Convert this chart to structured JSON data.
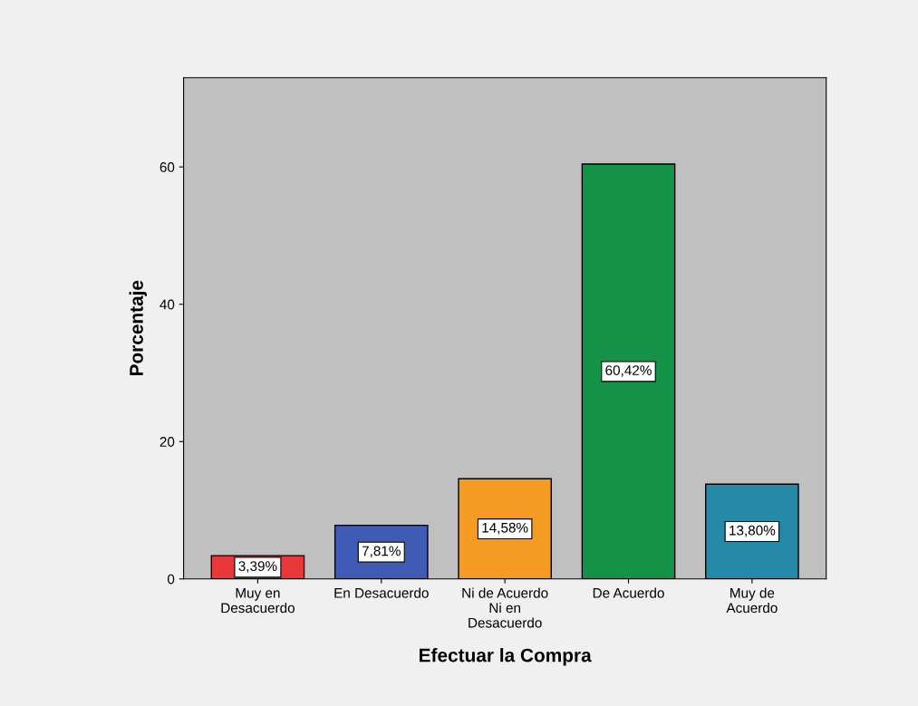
{
  "chart_data": {
    "type": "bar",
    "xlabel": "Efectuar la Compra",
    "ylabel": "Porcentaje",
    "categories": [
      "Muy en\nDesacuerdo",
      "En Desacuerdo",
      "Ni de Acuerdo\nNi en\nDesacuerdo",
      "De Acuerdo",
      "Muy de\nAcuerdo"
    ],
    "values": [
      3.39,
      7.81,
      14.58,
      60.42,
      13.8
    ],
    "colors": [
      "#e8383a",
      "#3f5bb5",
      "#f59a23",
      "#139248",
      "#2589a8"
    ],
    "value_labels": [
      "3,39%",
      "7,81%",
      "14,58%",
      "60,42%",
      "13,80%"
    ],
    "ylim": [
      0,
      73
    ],
    "yticks": [
      0,
      20,
      40,
      60
    ],
    "grid": false
  }
}
